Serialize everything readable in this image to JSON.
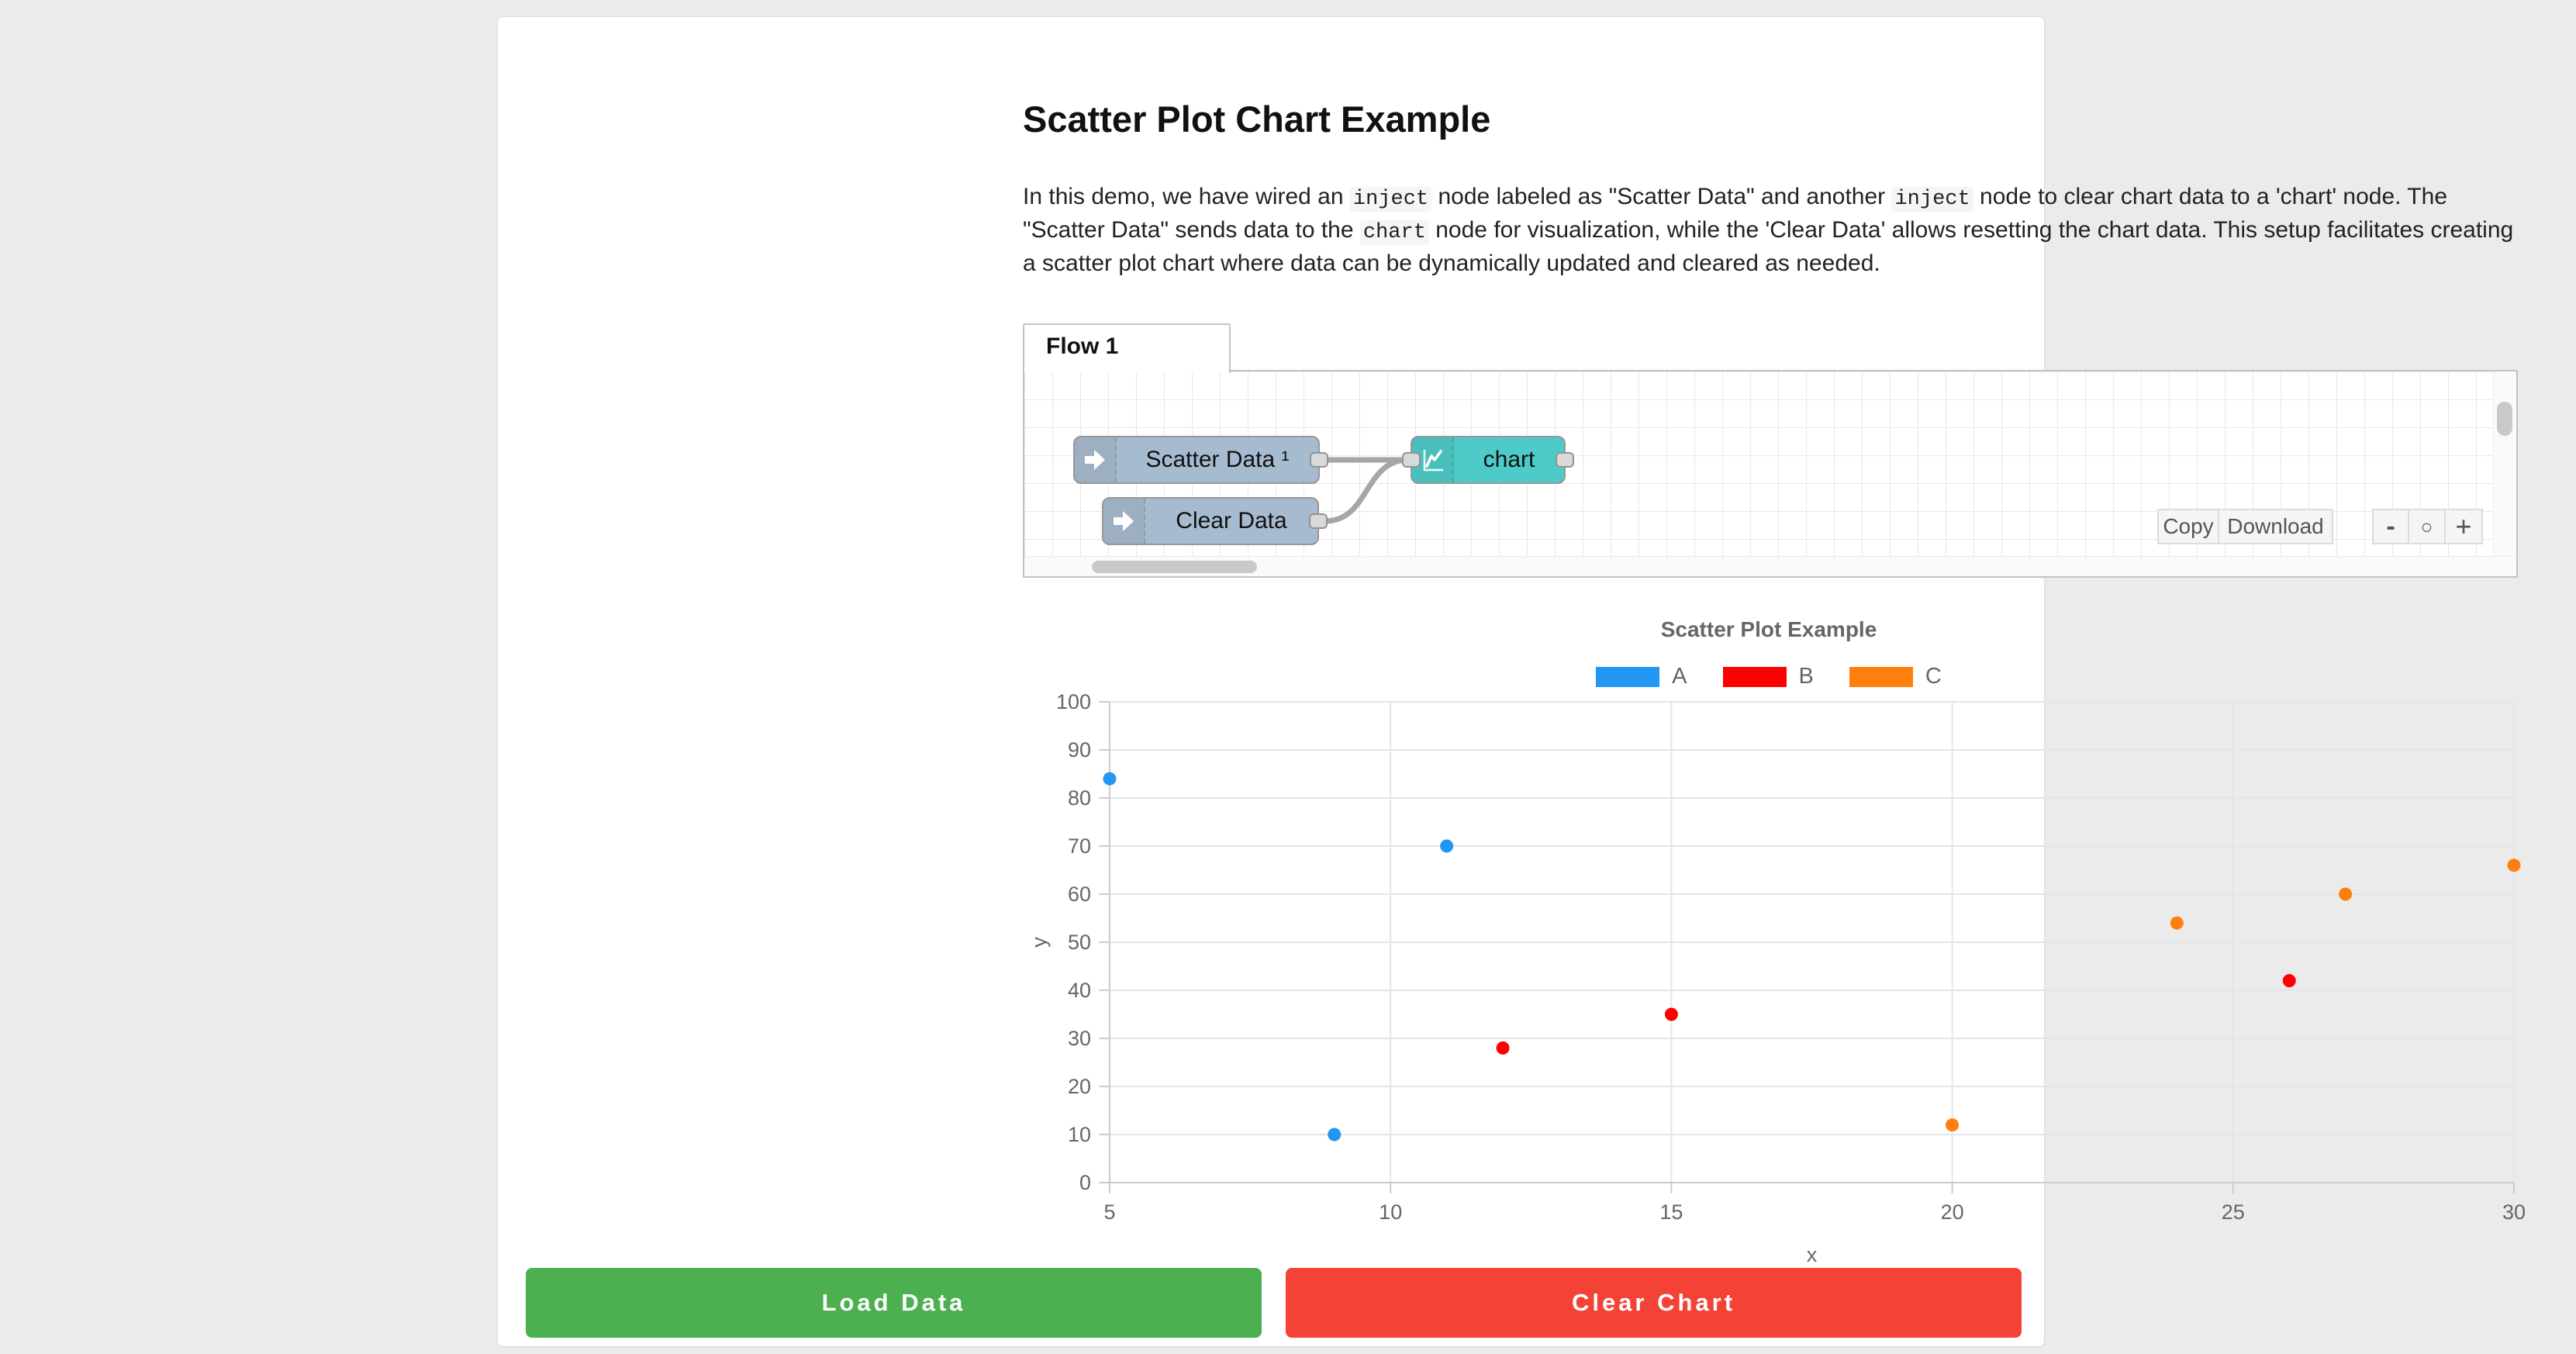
{
  "window": {
    "background": "#ebebeb",
    "card_background": "#ffffff"
  },
  "header": {
    "title": "Scatter Plot Chart Example"
  },
  "intro": {
    "segments": [
      {
        "text": "In this demo, we have wired an ",
        "code": false
      },
      {
        "text": "inject",
        "code": true
      },
      {
        "text": " node labeled as \"Scatter Data\" and another ",
        "code": false
      },
      {
        "text": "inject",
        "code": true
      },
      {
        "text": " node to clear chart data to a 'chart' node. The \"Scatter Data\" sends data to the ",
        "code": false
      },
      {
        "text": "chart",
        "code": true
      },
      {
        "text": " node for visualization, while the 'Clear Data' allows resetting the chart data. This setup facilitates creating a scatter plot chart where data can be dynamically updated and cleared as needed.",
        "code": false
      }
    ]
  },
  "flow_editor": {
    "tab_label": "Flow 1",
    "nodes": [
      {
        "label": "Scatter Data ¹",
        "type": "inject",
        "color": "#a6bbcf",
        "icon": "inject-arrow-icon"
      },
      {
        "label": "Clear Data",
        "type": "inject",
        "color": "#a6bbcf",
        "icon": "inject-arrow-icon"
      },
      {
        "label": "chart",
        "type": "chart",
        "color": "#4ecbc8",
        "icon": "chart-line-icon"
      }
    ],
    "toolbar": {
      "copy_label": "Copy",
      "download_label": "Download"
    },
    "zoom_controls": {
      "zoom_out": "-",
      "zoom_reset": "○",
      "zoom_in": "+"
    }
  },
  "chart_data": {
    "type": "scatter",
    "title": "Scatter Plot Example",
    "xlabel": "x",
    "ylabel": "y",
    "xlim": [
      5,
      30
    ],
    "ylim": [
      0,
      100
    ],
    "x_ticks": [
      5,
      10,
      15,
      20,
      25,
      30
    ],
    "y_ticks": [
      0,
      10,
      20,
      30,
      40,
      50,
      60,
      70,
      80,
      90,
      100
    ],
    "grid": true,
    "legend_position": "top",
    "series": [
      {
        "name": "A",
        "color": "#2196f3",
        "points": [
          [
            5,
            84
          ],
          [
            9,
            10
          ],
          [
            11,
            70
          ]
        ]
      },
      {
        "name": "B",
        "color": "#ff0000",
        "points": [
          [
            12,
            28
          ],
          [
            15,
            35
          ],
          [
            26,
            42
          ]
        ]
      },
      {
        "name": "C",
        "color": "#ff7f0e",
        "points": [
          [
            20,
            12
          ],
          [
            24,
            54
          ],
          [
            27,
            60
          ],
          [
            30,
            66
          ]
        ]
      }
    ]
  },
  "actions": {
    "load_label": "Load Data",
    "load_color": "#4caf50",
    "clear_label": "Clear Chart",
    "clear_color": "#f44336"
  }
}
